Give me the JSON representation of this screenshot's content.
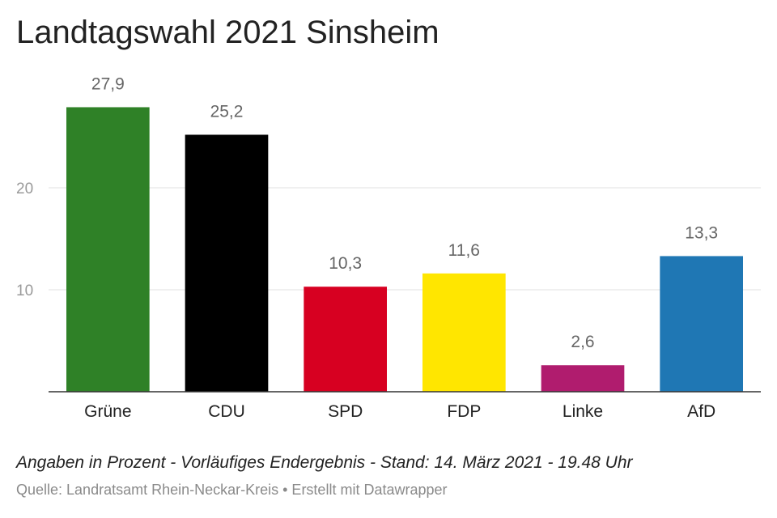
{
  "header": {
    "title": "Landtagswahl 2021 Sinsheim"
  },
  "footer": {
    "note": "Angaben in Prozent - Vorläufiges Endergebnis - Stand: 14. März 2021 - 19.48 Uhr",
    "source": "Quelle: Landratsamt Rhein-Neckar-Kreis • Erstellt mit Datawrapper"
  },
  "chart_data": {
    "type": "bar",
    "title": "Landtagswahl 2021 Sinsheim",
    "categories": [
      "Grüne",
      "CDU",
      "SPD",
      "FDP",
      "Linke",
      "AfD"
    ],
    "values": [
      27.9,
      25.2,
      10.3,
      11.6,
      2.6,
      13.3
    ],
    "value_labels": [
      "27,9",
      "25,2",
      "10,3",
      "11,6",
      "2,6",
      "13,3"
    ],
    "colors": [
      "#2f8127",
      "#000000",
      "#d70021",
      "#ffe600",
      "#b01c6e",
      "#1f77b4"
    ],
    "yticks": [
      10,
      20
    ],
    "ylim": [
      0,
      30
    ],
    "grid": true,
    "xlabel": "",
    "ylabel": ""
  }
}
